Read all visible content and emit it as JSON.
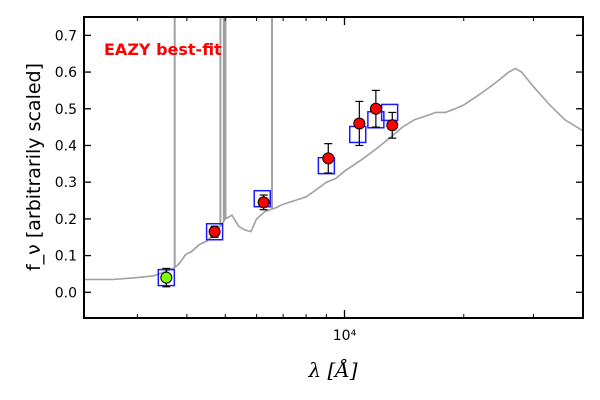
{
  "chart_data": {
    "type": "scatter",
    "title": "",
    "xlabel": "λ [Å]",
    "ylabel": "f_ν [arbitrarily scaled]",
    "xscale": "log",
    "xlim": [
      2200,
      40000
    ],
    "ylim": [
      -0.07,
      0.75
    ],
    "yticks": [
      0.0,
      0.1,
      0.2,
      0.3,
      0.4,
      0.5,
      0.6,
      0.7
    ],
    "ytick_labels": [
      "0.0",
      "0.1",
      "0.2",
      "0.3",
      "0.4",
      "0.5",
      "0.6",
      "0.7"
    ],
    "xticks_major": [
      10000
    ],
    "xtick_labels": [
      "10⁴"
    ],
    "xticks_minor": [
      3000,
      4000,
      5000,
      6000,
      7000,
      8000,
      9000,
      20000,
      30000
    ],
    "annotation": {
      "text": "EAZY best-fit",
      "color": "#ff0000",
      "position": "top-left"
    },
    "colors": {
      "model": "#a0a0a0",
      "model_photometry": "#1a1aff",
      "observed": "#ff0000",
      "observed_highlight": "#7fff00",
      "errorbar": "#000000"
    },
    "series": [
      {
        "name": "best-fit SED",
        "kind": "line",
        "x": [
          2200,
          2600,
          3000,
          3300,
          3500,
          3700,
          3800,
          3900,
          3950,
          4000,
          4100,
          4300,
          4500,
          4700,
          4900,
          5000,
          5200,
          5400,
          5600,
          5800,
          6000,
          6300,
          6700,
          7000,
          7500,
          8000,
          8500,
          9000,
          9500,
          10000,
          11000,
          12000,
          13000,
          14000,
          15000,
          16000,
          17000,
          18000,
          19000,
          20000,
          22000,
          24000,
          26000,
          27000,
          28000,
          30000,
          33000,
          36000,
          40000
        ],
        "y": [
          0.035,
          0.035,
          0.04,
          0.045,
          0.055,
          0.065,
          0.075,
          0.09,
          0.1,
          0.105,
          0.11,
          0.13,
          0.14,
          0.16,
          0.185,
          0.2,
          0.21,
          0.18,
          0.17,
          0.165,
          0.2,
          0.22,
          0.23,
          0.24,
          0.25,
          0.26,
          0.28,
          0.3,
          0.31,
          0.33,
          0.36,
          0.39,
          0.42,
          0.45,
          0.47,
          0.48,
          0.49,
          0.49,
          0.5,
          0.51,
          0.54,
          0.57,
          0.6,
          0.61,
          0.6,
          0.56,
          0.51,
          0.47,
          0.44
        ]
      },
      {
        "name": "emission lines",
        "kind": "vlines",
        "x": [
          3727,
          4861,
          4959,
          5007,
          6563
        ],
        "y_top": [
          0.75,
          0.75,
          0.75,
          0.75,
          0.75
        ]
      },
      {
        "name": "model photometry",
        "kind": "squares",
        "x": [
          3550,
          4700,
          6200,
          9000,
          10800,
          12000,
          13000
        ],
        "y": [
          0.04,
          0.165,
          0.255,
          0.345,
          0.43,
          0.47,
          0.49
        ]
      },
      {
        "name": "observed photometry",
        "kind": "points",
        "x": [
          3550,
          4700,
          6250,
          9100,
          10900,
          12000,
          13200
        ],
        "y": [
          0.04,
          0.165,
          0.245,
          0.365,
          0.46,
          0.5,
          0.455
        ],
        "yerr": [
          0.025,
          0.015,
          0.02,
          0.04,
          0.06,
          0.05,
          0.035
        ],
        "highlight_index": 0
      }
    ]
  }
}
